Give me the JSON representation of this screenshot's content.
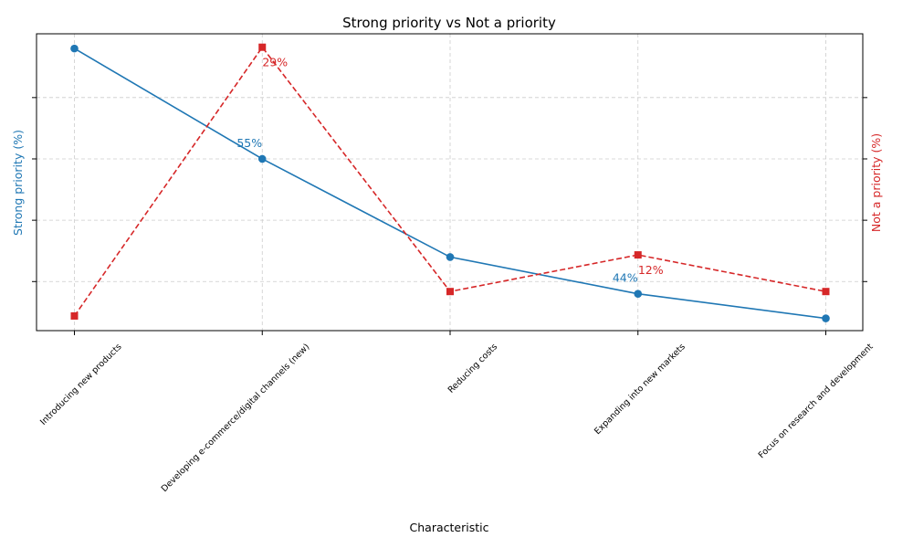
{
  "chart_data": {
    "type": "line",
    "title": "Strong priority vs Not a priority",
    "xlabel": "Characteristic",
    "categories": [
      "Introducing new products",
      "Developing e-commerce/digital channels (new)",
      "Reducing costs",
      "Expanding into new markets",
      "Focus on research and development"
    ],
    "series": [
      {
        "name": "Strong priority",
        "axis": "left",
        "ylabel": "Strong priority (%)",
        "color": "#1f77b4",
        "style": "solid",
        "marker": "circle",
        "values": [
          64,
          55,
          47,
          44,
          42
        ],
        "ylim": [
          41,
          65.2
        ],
        "data_labels": [
          "",
          "55%",
          "",
          "44%",
          ""
        ]
      },
      {
        "name": "Not a priority",
        "axis": "right",
        "ylabel": "Not a priority (%)",
        "color": "#d62728",
        "style": "dashed",
        "marker": "square",
        "values": [
          7,
          29,
          9,
          12,
          9
        ],
        "ylim": [
          5.8,
          30.1
        ],
        "data_labels": [
          "",
          "29%",
          "",
          "12%",
          ""
        ]
      }
    ],
    "grid": true,
    "legend": "none"
  }
}
